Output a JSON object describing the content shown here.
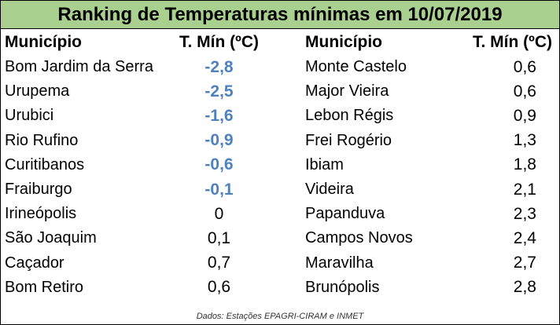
{
  "title": "Ranking de Temperaturas mínimas em 10/07/2019",
  "columns": {
    "municipio": "Município",
    "tmin": "T. Mín (ºC)"
  },
  "left_rows": [
    {
      "municipio": "Bom Jardim da Serra",
      "tmin": "-2,8",
      "negative": true
    },
    {
      "municipio": "Urupema",
      "tmin": "-2,5",
      "negative": true
    },
    {
      "municipio": "Urubici",
      "tmin": "-1,6",
      "negative": true
    },
    {
      "municipio": "Rio Rufino",
      "tmin": "-0,9",
      "negative": true
    },
    {
      "municipio": "Curitibanos",
      "tmin": "-0,6",
      "negative": true
    },
    {
      "municipio": "Fraiburgo",
      "tmin": "-0,1",
      "negative": true
    },
    {
      "municipio": "Irineópolis",
      "tmin": "0",
      "negative": false
    },
    {
      "municipio": "São Joaquim",
      "tmin": "0,1",
      "negative": false
    },
    {
      "municipio": "Caçador",
      "tmin": "0,7",
      "negative": false
    },
    {
      "municipio": "Bom Retiro",
      "tmin": "0,6",
      "negative": false
    }
  ],
  "right_rows": [
    {
      "municipio": "Monte Castelo",
      "tmin": "0,6"
    },
    {
      "municipio": "Major Vieira",
      "tmin": "0,6"
    },
    {
      "municipio": "Lebon Régis",
      "tmin": "0,9"
    },
    {
      "municipio": "Frei Rogério",
      "tmin": "1,3"
    },
    {
      "municipio": "Ibiam",
      "tmin": "1,8"
    },
    {
      "municipio": "Videira",
      "tmin": "2,1"
    },
    {
      "municipio": "Papanduva",
      "tmin": "2,3"
    },
    {
      "municipio": "Campos Novos",
      "tmin": "2,4"
    },
    {
      "municipio": "Maravilha",
      "tmin": "2,7"
    },
    {
      "municipio": "Brunópolis",
      "tmin": "2,8"
    }
  ],
  "footnote": "Dados: Estações EPAGRI-CIRAM  e INMET",
  "colors": {
    "title_bg": "#a9d08e",
    "negative_value": "#4f81bd"
  }
}
